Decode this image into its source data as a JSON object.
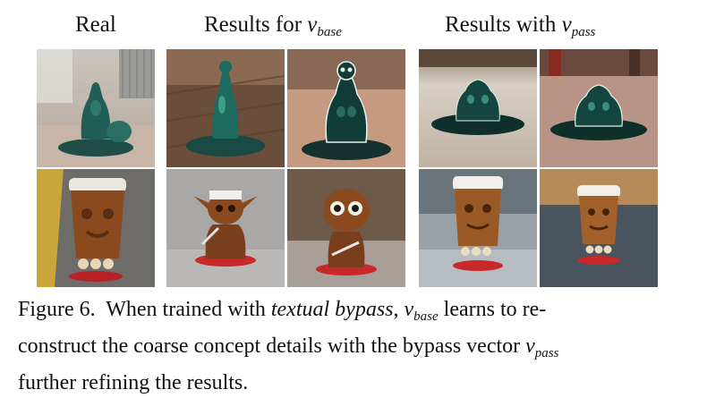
{
  "headers": {
    "real": "Real",
    "base_prefix": "Results for ",
    "base_var": "v",
    "base_sub": "base",
    "pass_prefix": "Results with ",
    "pass_var": "v",
    "pass_sub": "pass"
  },
  "caption": {
    "label": "Figure 6.",
    "t1": "When trained with ",
    "em1": "textual bypass",
    "t2": ", ",
    "var1": "v",
    "sub1": "base",
    "t3": " learns to re-",
    "line2a": "construct the coarse concept details with the bypass vector ",
    "var2": "v",
    "sub2": "pass",
    "line3": "further refining the results."
  },
  "images": {
    "row1": [
      "teal meditating figurine on table (real)",
      "teal meditating figurine on wooden surface",
      "teal meditating figurine with glowing edges",
      "teal meditating figurine on tiled floor",
      "teal meditating figurine on carpet"
    ],
    "row2": [
      "carved tiki cup with skulls (real)",
      "goblin figurine with sword",
      "goblin figurine with big eyes",
      "tiki cup with white rim on table",
      "tiki cup with white rim on carpet"
    ]
  },
  "colors": {
    "teal": "#1f5d55",
    "brown": "#8a4a1e",
    "red_base": "#c8282a"
  }
}
